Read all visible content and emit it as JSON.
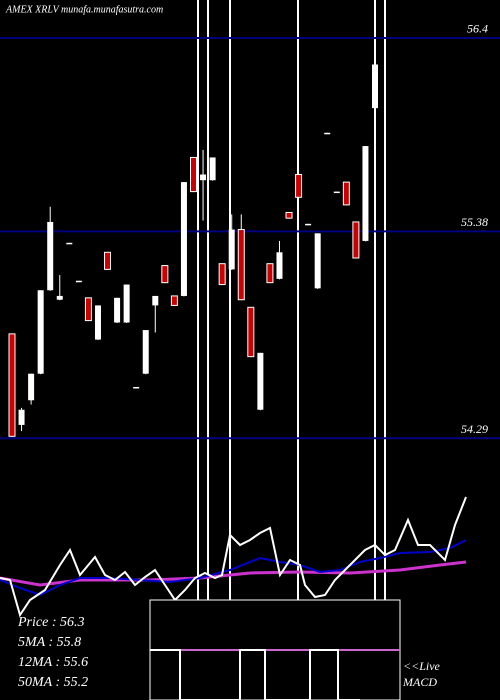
{
  "chart_data": {
    "type": "candlestick",
    "title": "AMEX  XRLV munafa.munafasutra.com",
    "ylim": [
      54.27,
      56.6
    ],
    "yticks": [
      54.29,
      55.38,
      56.4
    ],
    "open": [
      54.84,
      54.36,
      54.49,
      54.63,
      55.07,
      55.02,
      55.32,
      55.12,
      55.03,
      54.81,
      55.27,
      54.9,
      54.9,
      54.56,
      54.63,
      54.99,
      55.2,
      55.04,
      55.04,
      55.77,
      55.65,
      55.65,
      55.21,
      55.18,
      55.39,
      54.98,
      54.44,
      55.21,
      55.13,
      55.48,
      55.68,
      55.42,
      55.08,
      55.9,
      55.59,
      55.64,
      55.43,
      55.33,
      56.03
    ],
    "high": [
      54.84,
      54.45,
      54.63,
      55.07,
      55.51,
      55.15,
      55.32,
      55.12,
      55.03,
      54.99,
      55.27,
      55.03,
      55.1,
      54.56,
      54.86,
      55.04,
      55.2,
      55.04,
      55.64,
      55.77,
      55.81,
      55.77,
      55.21,
      55.47,
      55.47,
      54.98,
      54.74,
      55.21,
      55.33,
      55.48,
      55.68,
      55.42,
      55.37,
      55.9,
      55.59,
      55.64,
      55.43,
      55.83,
      56.31
    ],
    "low": [
      54.3,
      54.33,
      54.47,
      54.63,
      55.07,
      55.02,
      55.32,
      55.12,
      54.91,
      54.81,
      55.18,
      54.9,
      54.9,
      54.56,
      54.63,
      54.85,
      55.11,
      54.99,
      55.04,
      55.59,
      55.44,
      55.65,
      55.1,
      55.18,
      55.02,
      54.72,
      54.44,
      55.11,
      55.13,
      55.45,
      55.56,
      55.42,
      55.08,
      55.9,
      55.59,
      55.52,
      55.24,
      55.33,
      56.03
    ],
    "close": [
      54.3,
      54.44,
      54.63,
      55.07,
      55.43,
      55.04,
      55.32,
      55.12,
      54.91,
      54.99,
      55.18,
      55.03,
      55.1,
      54.56,
      54.86,
      55.04,
      55.11,
      54.99,
      55.64,
      55.59,
      55.68,
      55.77,
      55.1,
      55.39,
      55.02,
      54.72,
      54.74,
      55.11,
      55.27,
      55.45,
      55.56,
      55.42,
      55.37,
      55.9,
      55.59,
      55.52,
      55.24,
      55.83,
      56.26
    ],
    "up_color": "#ffffff",
    "down_color": "#cc0000",
    "grid_color": "#000080",
    "indicators": [
      "Price  : 56.3",
      "5MA : 55.8",
      "12MA : 55.6",
      "50MA : 55.2"
    ],
    "macd_label": [
      "<<Live",
      "MACD"
    ]
  }
}
